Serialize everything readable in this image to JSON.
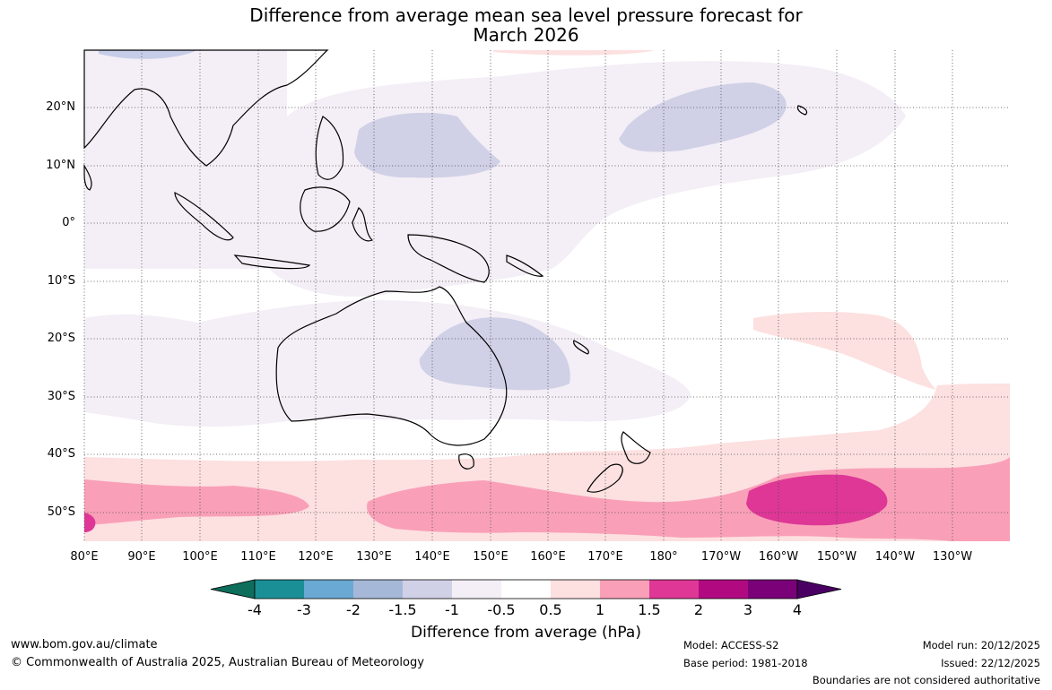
{
  "title_line1": "Difference from average mean sea level pressure forecast for",
  "title_line2": "March 2026",
  "lat_labels": [
    "20°N",
    "10°N",
    "0°",
    "10°S",
    "20°S",
    "30°S",
    "40°S",
    "50°S"
  ],
  "lon_labels": [
    "80°E",
    "90°E",
    "100°E",
    "110°E",
    "120°E",
    "130°E",
    "140°E",
    "150°E",
    "160°E",
    "170°E",
    "180°",
    "170°W",
    "160°W",
    "150°W",
    "140°W",
    "130°W"
  ],
  "colorbar": {
    "labels": [
      "-4",
      "-3",
      "-2",
      "-1.5",
      "-1",
      "-0.5",
      "0.5",
      "1",
      "1.5",
      "2",
      "3",
      "4"
    ],
    "colors": [
      "#0e6e5c",
      "#1b8f96",
      "#6aa9d3",
      "#a6b8d8",
      "#d0d1e6",
      "#f4eef6",
      "#ffffff",
      "#fde0e0",
      "#f9a0b8",
      "#de3796",
      "#b10a81",
      "#7a0177",
      "#4a0063"
    ],
    "title": "Difference from average (hPa)"
  },
  "footer": {
    "website": "www.bom.gov.au/climate",
    "copyright": "© Commonwealth of Australia 2025, Australian Bureau of Meteorology",
    "model": "Model: ACCESS-S2",
    "base_period": "Base period: 1981-2018",
    "model_run": "Model run: 20/12/2025",
    "issued": "Issued: 22/12/2025",
    "disclaimer": "Boundaries are not considered authoritative"
  }
}
